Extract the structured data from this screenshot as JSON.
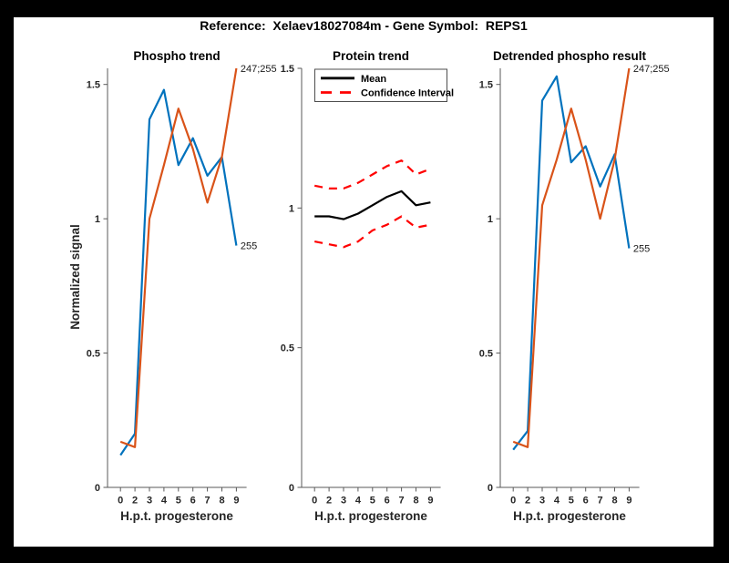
{
  "figure_title": "Reference:  Xelaev18027084m - Gene Symbol:  REPS1",
  "colors": {
    "blue": "#0072BD",
    "orange": "#D95319",
    "red": "#FF0000",
    "black": "#000000"
  },
  "chart_data": [
    {
      "type": "line",
      "title": "Phospho trend",
      "xlabel": "H.p.t. progesterone",
      "ylabel": "Normalized signal",
      "x_tick_labels": [
        "0",
        "2",
        "3",
        "4",
        "5",
        "6",
        "7",
        "8",
        "9"
      ],
      "y_tick_labels": [
        "0",
        "0.5",
        "1",
        "1.5"
      ],
      "y_tick_values": [
        0,
        0.5,
        1,
        1.5
      ],
      "ylim": [
        0,
        1.56
      ],
      "grid": false,
      "legend": null,
      "series": [
        {
          "name": "255",
          "color": "#0072BD",
          "style": "solid",
          "end_label": "255",
          "values": [
            0.12,
            0.2,
            1.37,
            1.48,
            1.2,
            1.3,
            1.16,
            1.23,
            0.9
          ]
        },
        {
          "name": "247;255",
          "color": "#D95319",
          "style": "solid",
          "end_label": "247;255",
          "values": [
            0.17,
            0.15,
            1.0,
            1.2,
            1.41,
            1.26,
            1.06,
            1.23,
            1.56
          ]
        }
      ]
    },
    {
      "type": "line",
      "title": "Protein trend",
      "xlabel": "H.p.t. progesterone",
      "ylabel": "",
      "x_tick_labels": [
        "0",
        "2",
        "3",
        "4",
        "5",
        "6",
        "7",
        "8",
        "9"
      ],
      "y_tick_labels": [
        "0",
        "0.5",
        "1",
        "1.5"
      ],
      "y_tick_values": [
        0,
        0.5,
        1,
        1.5
      ],
      "ylim": [
        0,
        1.5
      ],
      "grid": false,
      "legend": {
        "position": "top-left",
        "entries": [
          {
            "label": "Mean",
            "color": "#000000",
            "style": "solid"
          },
          {
            "label": "Confidence Interval",
            "color": "#FF0000",
            "style": "dashed"
          }
        ]
      },
      "series": [
        {
          "name": "Mean",
          "color": "#000000",
          "style": "solid",
          "end_label": "",
          "values": [
            0.97,
            0.97,
            0.96,
            0.98,
            1.01,
            1.04,
            1.06,
            1.01,
            1.02
          ]
        },
        {
          "name": "Confidence Interval upper",
          "color": "#FF0000",
          "style": "dashed",
          "end_label": "",
          "values": [
            1.08,
            1.07,
            1.07,
            1.09,
            1.12,
            1.15,
            1.17,
            1.12,
            1.14
          ]
        },
        {
          "name": "Confidence Interval lower",
          "color": "#FF0000",
          "style": "dashed",
          "end_label": "",
          "values": [
            0.88,
            0.87,
            0.86,
            0.88,
            0.92,
            0.94,
            0.97,
            0.93,
            0.94
          ]
        }
      ]
    },
    {
      "type": "line",
      "title": "Detrended phospho result",
      "xlabel": "H.p.t. progesterone",
      "ylabel": "",
      "x_tick_labels": [
        "0",
        "2",
        "3",
        "4",
        "5",
        "6",
        "7",
        "8",
        "9"
      ],
      "y_tick_labels": [
        "0",
        "0.5",
        "1",
        "1.5"
      ],
      "y_tick_values": [
        0,
        0.5,
        1,
        1.5
      ],
      "ylim": [
        0,
        1.56
      ],
      "grid": false,
      "legend": null,
      "series": [
        {
          "name": "255",
          "color": "#0072BD",
          "style": "solid",
          "end_label": "255",
          "values": [
            0.14,
            0.21,
            1.44,
            1.53,
            1.21,
            1.27,
            1.12,
            1.24,
            0.89
          ]
        },
        {
          "name": "247;255",
          "color": "#D95319",
          "style": "solid",
          "end_label": "247;255",
          "values": [
            0.17,
            0.15,
            1.05,
            1.22,
            1.41,
            1.22,
            1.0,
            1.22,
            1.56
          ]
        }
      ]
    }
  ]
}
